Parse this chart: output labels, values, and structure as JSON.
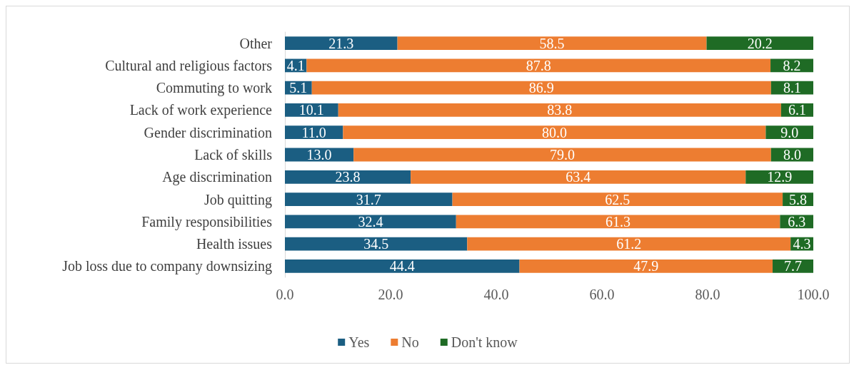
{
  "chart_data": {
    "type": "bar",
    "orientation": "horizontal",
    "stacked": true,
    "legend": "bottom",
    "grid": false,
    "categories": [
      "Other",
      "Cultural and religious factors",
      "Commuting to work",
      "Lack of work experience",
      "Gender discrimination",
      "Lack of skills",
      "Age discrimination",
      "Job quitting",
      "Family responsibilities",
      "Health issues",
      "Job loss due to company downsizing"
    ],
    "xlim": [
      0,
      100
    ],
    "xticks": [
      {
        "value": 0,
        "label": "0.0"
      },
      {
        "value": 20,
        "label": "20.0"
      },
      {
        "value": 40,
        "label": "40.0"
      },
      {
        "value": 60,
        "label": "60.0"
      },
      {
        "value": 80,
        "label": "80.0"
      },
      {
        "value": 100,
        "label": "100.0"
      }
    ],
    "series": [
      {
        "name": "Yes",
        "color": "#1b5e82",
        "values": [
          21.3,
          4.1,
          5.1,
          10.1,
          11.0,
          13.0,
          23.8,
          31.7,
          32.4,
          34.5,
          44.4
        ],
        "value_labels": [
          "21.3",
          "4.1",
          "5.1",
          "10.1",
          "11.0",
          "13.0",
          "23.8",
          "31.7",
          "32.4",
          "34.5",
          "44.4"
        ]
      },
      {
        "name": "No",
        "color": "#ed7d31",
        "values": [
          58.5,
          87.8,
          86.9,
          83.8,
          80.0,
          79.0,
          63.4,
          62.5,
          61.3,
          61.2,
          47.9
        ],
        "value_labels": [
          "58.5",
          "87.8",
          "86.9",
          "83.8",
          "80.0",
          "79.0",
          "63.4",
          "62.5",
          "61.3",
          "61.2",
          "47.9"
        ]
      },
      {
        "name": "Don't know",
        "color": "#1f6b25",
        "values": [
          20.2,
          8.2,
          8.1,
          6.1,
          9.0,
          8.0,
          12.9,
          5.8,
          6.3,
          4.3,
          7.7
        ],
        "value_labels": [
          "20.2",
          "8.2",
          "8.1",
          "6.1",
          "9.0",
          "8.0",
          "12.9",
          "5.8",
          "6.3",
          "4.3",
          "7.7"
        ]
      }
    ]
  }
}
